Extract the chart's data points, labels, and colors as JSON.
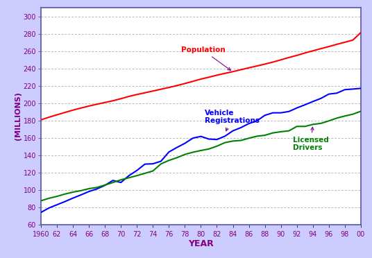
{
  "years": [
    1960,
    1961,
    1962,
    1963,
    1964,
    1965,
    1966,
    1967,
    1968,
    1969,
    1970,
    1971,
    1972,
    1973,
    1974,
    1975,
    1976,
    1977,
    1978,
    1979,
    1980,
    1981,
    1982,
    1983,
    1984,
    1985,
    1986,
    1987,
    1988,
    1989,
    1990,
    1991,
    1992,
    1993,
    1994,
    1995,
    1996,
    1997,
    1998,
    1999,
    2000
  ],
  "population": [
    180.7,
    183.7,
    186.5,
    189.2,
    191.9,
    194.3,
    196.6,
    198.7,
    200.7,
    202.7,
    205.1,
    207.7,
    209.9,
    211.9,
    213.9,
    216.0,
    218.0,
    220.2,
    222.6,
    225.1,
    227.7,
    229.9,
    232.2,
    234.3,
    236.3,
    238.5,
    240.7,
    242.8,
    245.0,
    247.3,
    249.9,
    252.6,
    255.0,
    257.8,
    260.3,
    262.8,
    265.2,
    267.8,
    270.2,
    272.7,
    281.4
  ],
  "vehicle_registrations": [
    73.9,
    79.0,
    82.7,
    86.4,
    90.4,
    94.1,
    98.0,
    101.0,
    105.1,
    110.8,
    108.4,
    116.3,
    122.3,
    129.6,
    130.0,
    132.9,
    143.6,
    148.8,
    153.6,
    159.6,
    161.6,
    158.5,
    158.0,
    161.8,
    168.0,
    171.7,
    176.4,
    179.5,
    185.9,
    188.8,
    188.8,
    190.3,
    194.4,
    198.0,
    201.8,
    205.4,
    210.4,
    211.5,
    215.5,
    216.2,
    217.0
  ],
  "licensed_drivers": [
    87.3,
    90.2,
    92.4,
    95.1,
    97.3,
    99.0,
    101.3,
    102.7,
    105.5,
    108.4,
    111.5,
    113.9,
    116.3,
    119.0,
    121.7,
    129.8,
    133.9,
    137.0,
    140.8,
    143.3,
    145.3,
    147.1,
    150.3,
    154.4,
    156.2,
    156.9,
    159.5,
    161.8,
    162.9,
    165.6,
    167.0,
    168.0,
    173.1,
    173.1,
    175.4,
    176.6,
    179.5,
    182.7,
    185.1,
    187.2,
    190.6
  ],
  "population_color": "#FF0000",
  "vehicle_color": "#0000FF",
  "driver_color": "#008000",
  "bg_color": "#CCCCFF",
  "plot_bg_color": "#FFFFFF",
  "xlabel": "YEAR",
  "ylabel": "(MILLIONS)",
  "ylim": [
    60,
    310
  ],
  "yticks": [
    60,
    80,
    100,
    120,
    140,
    160,
    180,
    200,
    220,
    240,
    260,
    280,
    300
  ],
  "xtick_labels": [
    "1960",
    "62",
    "64",
    "66",
    "68",
    "70",
    "72",
    "74",
    "76",
    "78",
    "80",
    "82",
    "84",
    "86",
    "88",
    "90",
    "92",
    "94",
    "96",
    "98",
    "00"
  ],
  "population_label": "Population",
  "vehicle_label": "Vehicle\nRegistrations",
  "driver_label": "Licensed\nDrivers",
  "label_color": "#800080",
  "spine_color": "#5555AA",
  "grid_color": "#999999"
}
